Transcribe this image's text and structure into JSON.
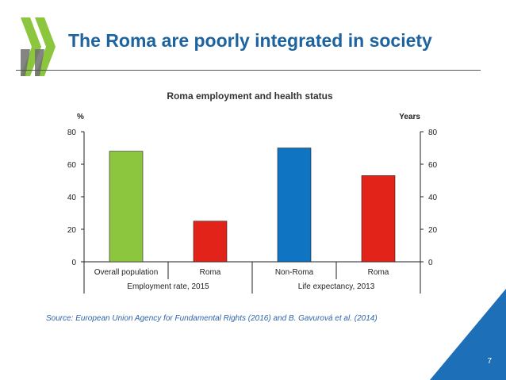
{
  "slide": {
    "title": "The Roma are poorly integrated in society",
    "source": "Source: European Union Agency for Fundamental Rights (2016) and B. Gavurová et al. (2014)",
    "page_number": "7",
    "logo_icon": "oecd-chevron-icon",
    "colors": {
      "title": "#1d63a0",
      "corner": "#1d6fb8",
      "source": "#2e63a8"
    }
  },
  "chart_data": {
    "type": "bar",
    "title": "Roma employment and health status",
    "left_axis_label": "%",
    "right_axis_label": "Years",
    "ylim": [
      0,
      80
    ],
    "yticks": [
      0,
      20,
      40,
      60,
      80
    ],
    "right_ylim": [
      0,
      80
    ],
    "right_yticks": [
      0,
      20,
      40,
      60,
      80
    ],
    "grid": false,
    "categories": [
      "Overall population",
      "Roma",
      "Non-Roma",
      "Roma"
    ],
    "values": [
      68,
      25,
      70,
      53
    ],
    "bar_colors": [
      "#8cc63f",
      "#e2231a",
      "#0f75c2",
      "#e2231a"
    ],
    "groups": [
      {
        "label": "Employment rate, 2015",
        "members": [
          0,
          1
        ]
      },
      {
        "label": "Life expectancy, 2013",
        "members": [
          2,
          3
        ]
      }
    ]
  }
}
